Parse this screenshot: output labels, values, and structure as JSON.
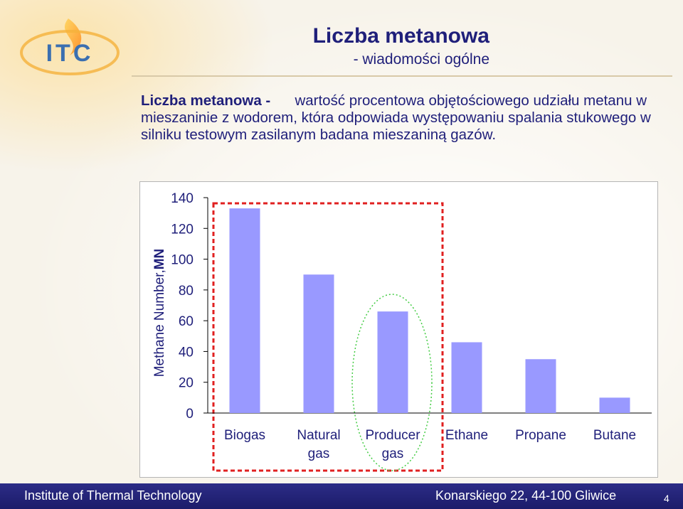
{
  "slide": {
    "title": "Liczba metanowa",
    "subtitle": "- wiadomości ogólne",
    "definition_term": "Liczba metanowa -",
    "definition_text": "wartość procentowa objętościowego udziału metanu w mieszaninie z wodorem, która odpowiada występowaniu spalania stukowego w silniku testowym zasilanym badana mieszaniną gazów."
  },
  "logo": {
    "text": "ITC",
    "icon": "flame-logo"
  },
  "footer": {
    "left": "Institute of Thermal Technology",
    "right": "Konarskiego 22, 44-100 Gliwice",
    "page": "4"
  },
  "colors": {
    "bar": "#9999ff",
    "title": "#1f1f7a",
    "footer_bg": "#24247a",
    "highlight_red": "#e02020",
    "highlight_green": "#44cc44"
  },
  "chart_data": {
    "type": "bar",
    "categories": [
      "Biogas",
      "Natural gas",
      "Producer gas",
      "Ethane",
      "Propane",
      "Butane"
    ],
    "category_lines": [
      [
        "Biogas"
      ],
      [
        "Natural",
        "gas"
      ],
      [
        "Producer",
        "gas"
      ],
      [
        "Ethane"
      ],
      [
        "Propane"
      ],
      [
        "Butane"
      ]
    ],
    "values": [
      133,
      90,
      66,
      46,
      35,
      10
    ],
    "ylabel_plain": "Methane Number,",
    "ylabel_bold": "MN",
    "ylim": [
      0,
      140
    ],
    "yticks": [
      0,
      20,
      40,
      60,
      80,
      100,
      120,
      140
    ],
    "grid": false
  }
}
